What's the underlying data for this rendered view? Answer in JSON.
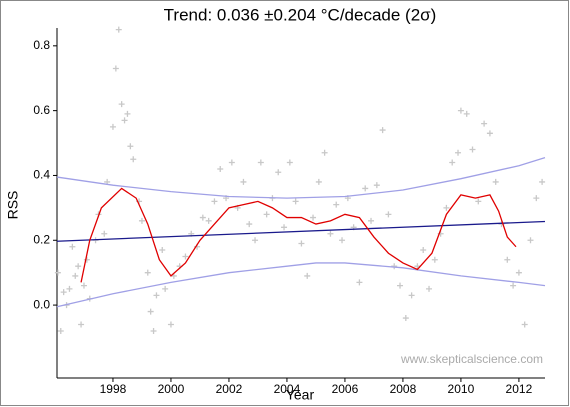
{
  "chart_data": {
    "type": "scatter",
    "title": "Trend: 0.036 ±0.204 °C/decade (2σ)",
    "x_label": "Year",
    "y_label": "RSS",
    "annotation": "www.skepticalscience.com",
    "xlim": [
      1996.07,
      2012.9
    ],
    "ylim": [
      -0.225,
      0.855
    ],
    "xticks": [
      1998,
      2000,
      2002,
      2004,
      2006,
      2008,
      2010,
      2012
    ],
    "yticks": [
      {
        "value": 0,
        "label": "0.0"
      },
      0.2,
      0.4,
      0.6,
      0.8
    ],
    "series": [
      {
        "style": "markers",
        "color": "#c8c8c8",
        "x": [
          1996.1,
          1996.2,
          1996.3,
          1996.4,
          1996.5,
          1996.6,
          1996.7,
          1996.8,
          1996.9,
          1997.0,
          1997.1,
          1997.2,
          1997.4,
          1997.5,
          1997.7,
          1997.8,
          1998.0,
          1998.1,
          1998.2,
          1998.3,
          1998.4,
          1998.5,
          1998.6,
          1998.7,
          1998.9,
          1999.0,
          1999.2,
          1999.3,
          1999.4,
          1999.5,
          1999.7,
          1999.8,
          2000.0,
          2000.1,
          2000.3,
          2000.5,
          2000.7,
          2000.9,
          2001.1,
          2001.3,
          2001.5,
          2001.7,
          2001.9,
          2002.1,
          2002.3,
          2002.5,
          2002.7,
          2002.9,
          2003.1,
          2003.3,
          2003.5,
          2003.7,
          2003.9,
          2004.1,
          2004.3,
          2004.5,
          2004.7,
          2004.9,
          2005.1,
          2005.3,
          2005.5,
          2005.7,
          2005.9,
          2006.1,
          2006.3,
          2006.5,
          2006.7,
          2006.9,
          2007.1,
          2007.3,
          2007.5,
          2007.7,
          2007.9,
          2008.1,
          2008.3,
          2008.5,
          2008.7,
          2008.9,
          2009.1,
          2009.3,
          2009.5,
          2009.7,
          2009.9,
          2010.0,
          2010.2,
          2010.4,
          2010.6,
          2010.8,
          2011.0,
          2011.2,
          2011.4,
          2011.6,
          2011.8,
          2012.0,
          2012.2,
          2012.4,
          2012.6,
          2012.8
        ],
        "y": [
          0.1,
          -0.08,
          0.04,
          0.0,
          0.05,
          0.18,
          0.09,
          0.12,
          -0.06,
          0.06,
          0.14,
          0.02,
          0.2,
          0.28,
          0.22,
          0.38,
          0.55,
          0.73,
          0.85,
          0.62,
          0.57,
          0.59,
          0.49,
          0.45,
          0.32,
          0.26,
          0.1,
          -0.02,
          -0.08,
          0.03,
          0.17,
          0.05,
          -0.06,
          0.09,
          0.12,
          0.15,
          0.22,
          0.18,
          0.27,
          0.26,
          0.32,
          0.42,
          0.33,
          0.44,
          0.3,
          0.38,
          0.25,
          0.2,
          0.44,
          0.28,
          0.33,
          0.41,
          0.24,
          0.44,
          0.32,
          0.19,
          0.09,
          0.27,
          0.38,
          0.47,
          0.22,
          0.31,
          0.2,
          0.33,
          0.24,
          0.07,
          0.36,
          0.26,
          0.37,
          0.54,
          0.28,
          0.12,
          0.06,
          -0.04,
          0.03,
          0.12,
          0.17,
          0.05,
          0.14,
          0.22,
          0.3,
          0.44,
          0.47,
          0.6,
          0.59,
          0.48,
          0.32,
          0.56,
          0.53,
          0.38,
          0.25,
          0.14,
          0.06,
          0.1,
          -0.06,
          0.2,
          0.33,
          0.38
        ]
      },
      {
        "style": "line",
        "color": "#a0a0e6",
        "x": [
          1996.07,
          1998,
          2000,
          2002,
          2004,
          2006,
          2008,
          2010,
          2012,
          2012.9
        ],
        "y": [
          0.395,
          0.37,
          0.35,
          0.335,
          0.33,
          0.335,
          0.355,
          0.39,
          0.43,
          0.455
        ]
      },
      {
        "style": "line",
        "color": "#a0a0e6",
        "x": [
          1996.07,
          1998,
          2000,
          2002,
          2004,
          2005,
          2006,
          2008,
          2010,
          2012,
          2012.9
        ],
        "y": [
          -0.005,
          0.035,
          0.07,
          0.1,
          0.12,
          0.13,
          0.13,
          0.115,
          0.09,
          0.07,
          0.06
        ]
      },
      {
        "style": "line",
        "color": "#1a1a8c",
        "x": [
          1996.07,
          2012.9
        ],
        "y": [
          0.197,
          0.258
        ]
      },
      {
        "style": "line",
        "color": "#e00000",
        "x": [
          1996.9,
          1997.2,
          1997.6,
          1998.3,
          1998.8,
          1999.2,
          1999.6,
          2000,
          2000.5,
          2001,
          2001.5,
          2002,
          2002.5,
          2003,
          2003.5,
          2004,
          2004.5,
          2005,
          2005.5,
          2006,
          2006.5,
          2007,
          2007.5,
          2008,
          2008.5,
          2009,
          2009.5,
          2010,
          2010.5,
          2011,
          2011.3,
          2011.6,
          2011.9
        ],
        "y": [
          0.07,
          0.2,
          0.3,
          0.36,
          0.33,
          0.25,
          0.14,
          0.09,
          0.13,
          0.2,
          0.25,
          0.3,
          0.31,
          0.32,
          0.3,
          0.27,
          0.27,
          0.25,
          0.26,
          0.28,
          0.27,
          0.21,
          0.16,
          0.13,
          0.11,
          0.16,
          0.28,
          0.34,
          0.33,
          0.34,
          0.29,
          0.21,
          0.18
        ]
      }
    ]
  }
}
